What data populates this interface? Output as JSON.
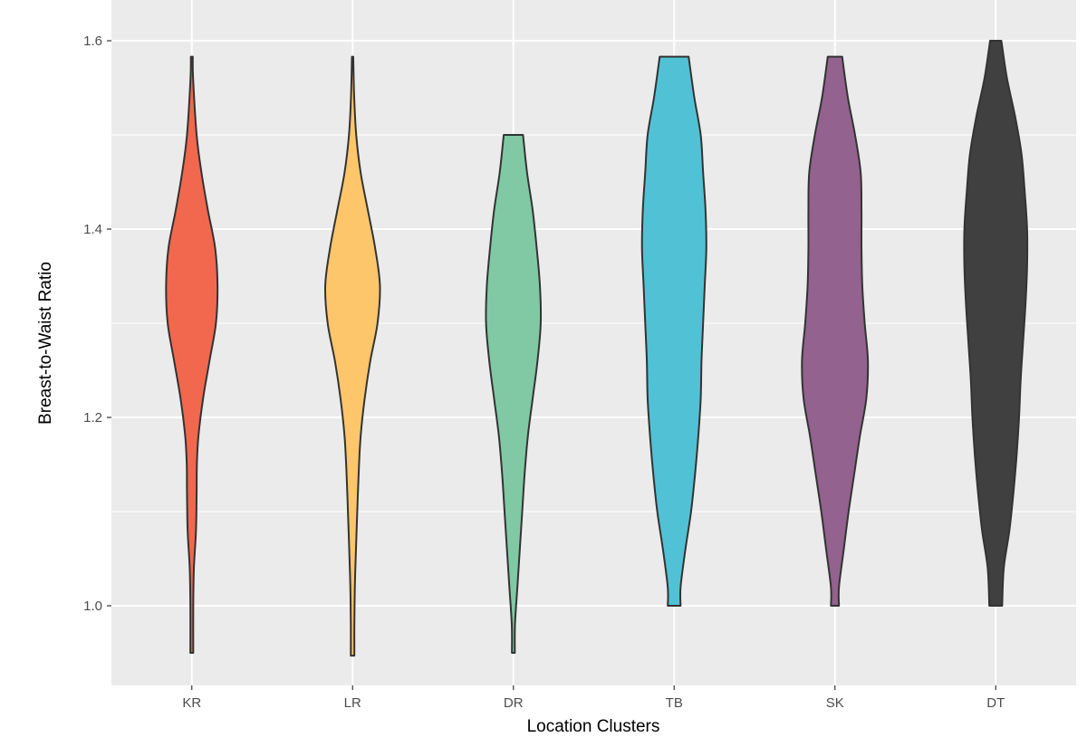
{
  "chart_data": {
    "type": "violin",
    "title": "",
    "xlabel": "Location Clusters",
    "ylabel": "Breast-to-Waist Ratio",
    "ylim": [
      0.918,
      1.63
    ],
    "y_ticks": [
      "1.0",
      "1.2",
      "1.4",
      "1.6"
    ],
    "grid": true,
    "legend": "none",
    "categories": [
      "KR",
      "LR",
      "DR",
      "TB",
      "SK",
      "DT"
    ],
    "series": [
      {
        "category": "KR",
        "color": "#f2684e",
        "min": 0.95,
        "max": 1.583,
        "profile": [
          [
            1.583,
            0.012
          ],
          [
            1.56,
            0.016
          ],
          [
            1.5,
            0.06
          ],
          [
            1.46,
            0.12
          ],
          [
            1.42,
            0.2
          ],
          [
            1.38,
            0.29
          ],
          [
            1.34,
            0.32
          ],
          [
            1.3,
            0.3
          ],
          [
            1.26,
            0.22
          ],
          [
            1.22,
            0.14
          ],
          [
            1.18,
            0.082
          ],
          [
            1.15,
            0.063
          ],
          [
            1.12,
            0.06
          ],
          [
            1.08,
            0.052
          ],
          [
            1.04,
            0.026
          ],
          [
            1.0,
            0.018
          ],
          [
            0.95,
            0.018
          ]
        ]
      },
      {
        "category": "LR",
        "color": "#fec66b",
        "min": 0.947,
        "max": 1.583,
        "profile": [
          [
            1.583,
            0.008
          ],
          [
            1.54,
            0.02
          ],
          [
            1.5,
            0.045
          ],
          [
            1.46,
            0.1
          ],
          [
            1.42,
            0.19
          ],
          [
            1.38,
            0.28
          ],
          [
            1.34,
            0.34
          ],
          [
            1.3,
            0.31
          ],
          [
            1.26,
            0.22
          ],
          [
            1.22,
            0.15
          ],
          [
            1.18,
            0.1
          ],
          [
            1.14,
            0.075
          ],
          [
            1.1,
            0.058
          ],
          [
            1.06,
            0.042
          ],
          [
            1.02,
            0.028
          ],
          [
            0.98,
            0.022
          ],
          [
            0.947,
            0.022
          ]
        ]
      },
      {
        "category": "DR",
        "color": "#80c9a4",
        "min": 0.95,
        "max": 1.5,
        "profile": [
          [
            1.5,
            0.12
          ],
          [
            1.46,
            0.17
          ],
          [
            1.42,
            0.24
          ],
          [
            1.38,
            0.29
          ],
          [
            1.34,
            0.33
          ],
          [
            1.3,
            0.34
          ],
          [
            1.26,
            0.3
          ],
          [
            1.22,
            0.24
          ],
          [
            1.18,
            0.18
          ],
          [
            1.14,
            0.14
          ],
          [
            1.1,
            0.11
          ],
          [
            1.06,
            0.08
          ],
          [
            1.02,
            0.05
          ],
          [
            0.98,
            0.02
          ],
          [
            0.95,
            0.018
          ]
        ]
      },
      {
        "category": "TB",
        "color": "#51c2d5",
        "min": 1.0,
        "max": 1.583,
        "profile": [
          [
            1.583,
            0.18
          ],
          [
            1.54,
            0.25
          ],
          [
            1.5,
            0.33
          ],
          [
            1.46,
            0.36
          ],
          [
            1.42,
            0.39
          ],
          [
            1.38,
            0.4
          ],
          [
            1.34,
            0.38
          ],
          [
            1.3,
            0.36
          ],
          [
            1.26,
            0.34
          ],
          [
            1.22,
            0.33
          ],
          [
            1.18,
            0.3
          ],
          [
            1.14,
            0.26
          ],
          [
            1.1,
            0.21
          ],
          [
            1.06,
            0.14
          ],
          [
            1.02,
            0.08
          ],
          [
            1.0,
            0.08
          ]
        ]
      },
      {
        "category": "SK",
        "color": "#93628e",
        "min": 1.0,
        "max": 1.583,
        "profile": [
          [
            1.583,
            0.09
          ],
          [
            1.54,
            0.16
          ],
          [
            1.5,
            0.25
          ],
          [
            1.46,
            0.32
          ],
          [
            1.42,
            0.33
          ],
          [
            1.38,
            0.33
          ],
          [
            1.34,
            0.34
          ],
          [
            1.3,
            0.37
          ],
          [
            1.26,
            0.41
          ],
          [
            1.22,
            0.39
          ],
          [
            1.18,
            0.31
          ],
          [
            1.14,
            0.24
          ],
          [
            1.1,
            0.17
          ],
          [
            1.06,
            0.11
          ],
          [
            1.02,
            0.05
          ],
          [
            1.0,
            0.05
          ]
        ]
      },
      {
        "category": "DT",
        "color": "#404040",
        "min": 1.0,
        "max": 1.6,
        "profile": [
          [
            1.6,
            0.07
          ],
          [
            1.56,
            0.14
          ],
          [
            1.52,
            0.24
          ],
          [
            1.48,
            0.32
          ],
          [
            1.44,
            0.36
          ],
          [
            1.4,
            0.39
          ],
          [
            1.36,
            0.39
          ],
          [
            1.32,
            0.37
          ],
          [
            1.28,
            0.34
          ],
          [
            1.24,
            0.31
          ],
          [
            1.2,
            0.29
          ],
          [
            1.16,
            0.26
          ],
          [
            1.12,
            0.22
          ],
          [
            1.08,
            0.17
          ],
          [
            1.04,
            0.1
          ],
          [
            1.0,
            0.08
          ]
        ]
      }
    ]
  }
}
